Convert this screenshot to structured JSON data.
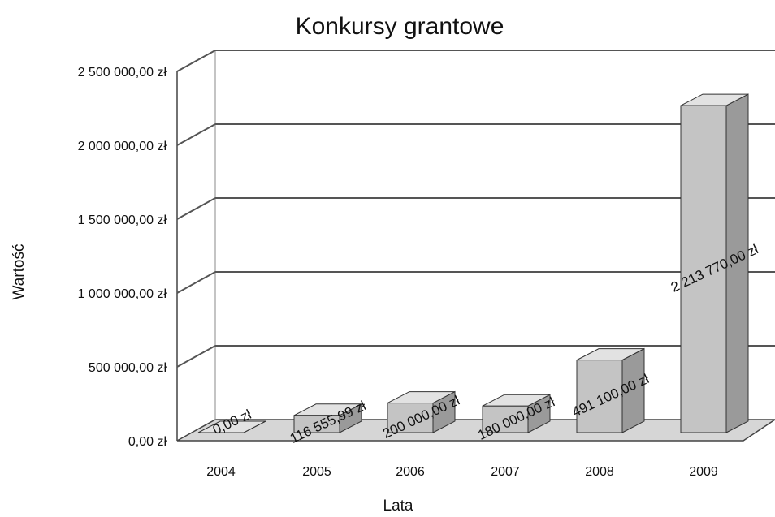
{
  "chart_data": {
    "type": "bar3d",
    "title": "Konkursy grantowe",
    "x_label": "Lata",
    "y_label": "Wartość",
    "categories": [
      "2004",
      "2005",
      "2006",
      "2007",
      "2008",
      "2009"
    ],
    "values": [
      0,
      116555.99,
      200000,
      180000,
      491100,
      2213770
    ],
    "value_labels": [
      "0,00 zł",
      "116 555,99 zł",
      "200 000,00 zł",
      "180 000,00 zł",
      "491 100,00 zł",
      "2 213 770,00 zł"
    ],
    "color": "#c4c4c4",
    "ylim": [
      0,
      2500000
    ],
    "yticks": [
      {
        "value": 0,
        "label": "0,00 zł"
      },
      {
        "value": 500000,
        "label": "500 000,00 zł"
      },
      {
        "value": 1000000,
        "label": "1 000 000,00 zł"
      },
      {
        "value": 1500000,
        "label": "1 500 000,00 zł"
      },
      {
        "value": 2000000,
        "label": "2 000 000,00 zł"
      },
      {
        "value": 2500000,
        "label": "2 500 000,00 zł"
      }
    ],
    "grid": true
  }
}
